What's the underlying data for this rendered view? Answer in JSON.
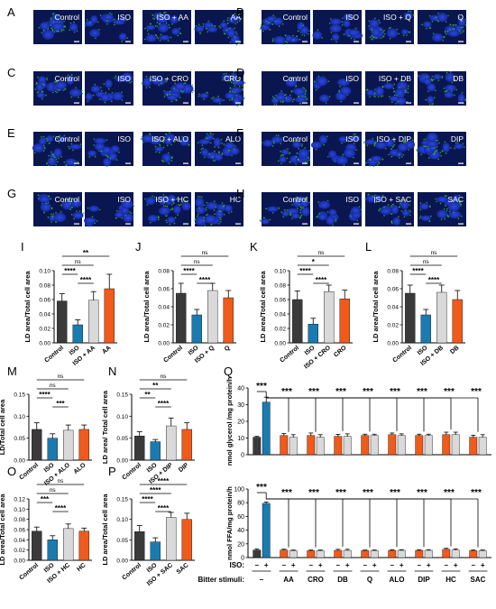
{
  "panel_letters": [
    "A",
    "B",
    "C",
    "D",
    "E",
    "F",
    "G",
    "H",
    "I",
    "J",
    "K",
    "L",
    "M",
    "N",
    "O",
    "P",
    "Q"
  ],
  "micro_labels": [
    [
      "Control",
      "ISO",
      "ISO + AA",
      "AA"
    ],
    [
      "Control",
      "ISO",
      "ISO + Q",
      "Q"
    ],
    [
      "Control",
      "ISO",
      "ISO + CRO",
      "CRO"
    ],
    [
      "Control",
      "ISO",
      "ISO + DB",
      "DB"
    ],
    [
      "Control",
      "ISO",
      "ISO + ALO",
      "ALO"
    ],
    [
      "Control",
      "ISO",
      "ISO + DIP",
      "DIP"
    ],
    [
      "Control",
      "ISO",
      "ISO + HC",
      "HC"
    ],
    [
      "Control",
      "ISO",
      "ISO + SAC",
      "SAC"
    ]
  ],
  "colors": {
    "control": "#3a3a3a",
    "iso": "#1a7bb0",
    "combo": "#d9d9d9",
    "bitter": "#f05a1a",
    "micro_bg": "#0a1650",
    "nucleus": "#1e3ad0",
    "lipid": "#2fb52a"
  },
  "chart_data": [
    {
      "panel": "I",
      "type": "bar",
      "categories": [
        "Control",
        "ISO",
        "ISO + AA",
        "AA"
      ],
      "values": [
        0.058,
        0.025,
        0.059,
        0.075
      ],
      "errors": [
        0.01,
        0.007,
        0.012,
        0.02
      ],
      "ylabel": "LD area/Total cell area",
      "yticks": [
        "0.00",
        "0.02",
        "0.04",
        "0.06",
        "0.08",
        "0.10"
      ],
      "ylim": [
        0,
        0.1
      ],
      "sig": [
        {
          "a": 0,
          "b": 1,
          "text": "****"
        },
        {
          "a": 1,
          "b": 2,
          "text": "****"
        },
        {
          "a": 0,
          "b": 2,
          "text": "ns"
        },
        {
          "a": 0,
          "b": 3,
          "text": "**"
        }
      ]
    },
    {
      "panel": "J",
      "type": "bar",
      "categories": [
        "Control",
        "ISO",
        "ISO + Q",
        "Q"
      ],
      "values": [
        0.055,
        0.031,
        0.058,
        0.05
      ],
      "errors": [
        0.011,
        0.006,
        0.008,
        0.008
      ],
      "ylabel": "LD area/Total cell area",
      "yticks": [
        "0.00",
        "0.02",
        "0.04",
        "0.06",
        "0.08"
      ],
      "ylim": [
        0,
        0.08
      ],
      "sig": [
        {
          "a": 0,
          "b": 1,
          "text": "****"
        },
        {
          "a": 1,
          "b": 2,
          "text": "****"
        },
        {
          "a": 0,
          "b": 2,
          "text": "ns"
        },
        {
          "a": 0,
          "b": 3,
          "text": "ns"
        }
      ]
    },
    {
      "panel": "K",
      "type": "bar",
      "categories": [
        "Control",
        "ISO",
        "ISO + CRO",
        "CRO"
      ],
      "values": [
        0.06,
        0.026,
        0.071,
        0.061
      ],
      "errors": [
        0.012,
        0.008,
        0.009,
        0.012
      ],
      "ylabel": "LD area/Total cell area",
      "yticks": [
        "0.00",
        "0.02",
        "0.04",
        "0.06",
        "0.08",
        "0.10"
      ],
      "ylim": [
        0,
        0.1
      ],
      "sig": [
        {
          "a": 0,
          "b": 1,
          "text": "****"
        },
        {
          "a": 1,
          "b": 2,
          "text": "****"
        },
        {
          "a": 0,
          "b": 2,
          "text": "*"
        },
        {
          "a": 0,
          "b": 3,
          "text": "ns"
        }
      ]
    },
    {
      "panel": "L",
      "type": "bar",
      "categories": [
        "Control",
        "ISO",
        "ISO + DB",
        "DB"
      ],
      "values": [
        0.055,
        0.031,
        0.056,
        0.048
      ],
      "errors": [
        0.009,
        0.006,
        0.008,
        0.01
      ],
      "ylabel": "LD area/Total cell area",
      "yticks": [
        "0.00",
        "0.02",
        "0.04",
        "0.06",
        "0.08"
      ],
      "ylim": [
        0,
        0.08
      ],
      "sig": [
        {
          "a": 0,
          "b": 1,
          "text": "****"
        },
        {
          "a": 1,
          "b": 2,
          "text": "****"
        },
        {
          "a": 0,
          "b": 2,
          "text": "ns"
        },
        {
          "a": 0,
          "b": 3,
          "text": "ns"
        }
      ]
    },
    {
      "panel": "M",
      "type": "bar",
      "categories": [
        "Control",
        "ISO",
        "ISO + ALO",
        "ALO"
      ],
      "values": [
        0.07,
        0.05,
        0.068,
        0.07
      ],
      "errors": [
        0.015,
        0.01,
        0.012,
        0.01
      ],
      "ylabel": "LD/Total cell area",
      "yticks": [
        "0.00",
        "0.05",
        "0.10",
        "0.15"
      ],
      "ylim": [
        0,
        0.15
      ],
      "sig": [
        {
          "a": 0,
          "b": 1,
          "text": "****"
        },
        {
          "a": 1,
          "b": 2,
          "text": "***"
        },
        {
          "a": 0,
          "b": 2,
          "text": "ns"
        },
        {
          "a": 0,
          "b": 3,
          "text": "ns"
        }
      ]
    },
    {
      "panel": "N",
      "type": "bar",
      "categories": [
        "Control",
        "ISO",
        "ISO + DIP",
        "DIP"
      ],
      "values": [
        0.055,
        0.042,
        0.078,
        0.07
      ],
      "errors": [
        0.01,
        0.005,
        0.018,
        0.015
      ],
      "ylabel": "LD area/ Total cell area",
      "yticks": [
        "0.00",
        "0.05",
        "0.10",
        "0.15"
      ],
      "ylim": [
        0,
        0.15
      ],
      "sig": [
        {
          "a": 0,
          "b": 1,
          "text": "**"
        },
        {
          "a": 1,
          "b": 2,
          "text": "****"
        },
        {
          "a": 0,
          "b": 2,
          "text": "**"
        },
        {
          "a": 0,
          "b": 3,
          "text": "ns"
        }
      ]
    },
    {
      "panel": "O",
      "type": "bar",
      "categories": [
        "Control",
        "ISO",
        "ISO + HC",
        "HC"
      ],
      "values": [
        0.057,
        0.04,
        0.062,
        0.057
      ],
      "errors": [
        0.008,
        0.008,
        0.009,
        0.006
      ],
      "ylabel": "LD area/Total cell area",
      "yticks": [
        "0.00",
        "0.02",
        "0.04",
        "0.06",
        "0.08",
        "0.10",
        "0.12"
      ],
      "ylim": [
        0,
        0.12
      ],
      "sig": [
        {
          "a": 0,
          "b": 1,
          "text": "***"
        },
        {
          "a": 1,
          "b": 2,
          "text": "****"
        },
        {
          "a": 0,
          "b": 2,
          "text": "ns"
        },
        {
          "a": 0,
          "b": 3,
          "text": "ns"
        }
      ]
    },
    {
      "panel": "P",
      "type": "bar",
      "categories": [
        "Control",
        "ISO",
        "ISO + SAC",
        "SAC"
      ],
      "values": [
        0.07,
        0.045,
        0.105,
        0.1
      ],
      "errors": [
        0.015,
        0.01,
        0.012,
        0.015
      ],
      "ylabel": "LD area/Total cell area",
      "yticks": [
        "0.00",
        "0.05",
        "0.10",
        "0.15"
      ],
      "ylim": [
        0,
        0.15
      ],
      "sig": [
        {
          "a": 0,
          "b": 1,
          "text": "****"
        },
        {
          "a": 1,
          "b": 2,
          "text": "****"
        },
        {
          "a": 0,
          "b": 2,
          "text": "****"
        },
        {
          "a": 0,
          "b": 3,
          "text": "****"
        }
      ]
    },
    {
      "panel": "Q-top",
      "type": "bar",
      "ylabel": "nmol glycerol /mg protein/h",
      "yticks": [
        "0",
        "10",
        "20",
        "30",
        "40"
      ],
      "ylim": [
        0,
        40
      ],
      "groups": [
        "–",
        "AA",
        "CRO",
        "DB",
        "Q",
        "ALO",
        "DIP",
        "HC",
        "SAC"
      ],
      "series": [
        {
          "name": "–",
          "values": [
            10.5,
            11.5,
            11.5,
            11,
            11.5,
            12,
            11.5,
            12,
            10.5
          ],
          "errors": [
            0.5,
            1.2,
            1.5,
            1.2,
            0.8,
            1,
            0.8,
            1.5,
            1.2
          ]
        },
        {
          "name": "+",
          "values": [
            31.5,
            10.5,
            10.5,
            11,
            11.5,
            11.5,
            11.5,
            12,
            10.5
          ],
          "errors": [
            3,
            1.5,
            1.5,
            1.5,
            0.8,
            1,
            0.8,
            1.5,
            1.5
          ]
        }
      ],
      "sig_label": "***"
    },
    {
      "panel": "Q-bottom",
      "type": "bar",
      "ylabel": "nmol FFA/mg protein/h",
      "yticks": [
        "0",
        "20",
        "40",
        "60",
        "80",
        "100"
      ],
      "ylim": [
        0,
        100
      ],
      "groups": [
        "–",
        "AA",
        "CRO",
        "DB",
        "Q",
        "ALO",
        "DIP",
        "HC",
        "SAC"
      ],
      "series": [
        {
          "name": "–",
          "values": [
            11,
            11,
            10,
            10.5,
            10,
            10.5,
            10.5,
            12,
            10
          ],
          "errors": [
            1.5,
            1.2,
            1,
            1.5,
            1,
            1,
            1,
            1.5,
            1
          ]
        },
        {
          "name": "+",
          "values": [
            79,
            10,
            10,
            10.5,
            10,
            10.5,
            10.5,
            11,
            10
          ],
          "errors": [
            2,
            1,
            1,
            1.5,
            1,
            1,
            1,
            1.5,
            1
          ]
        }
      ],
      "sig_label": "***",
      "iso_row_label": "ISO:",
      "iso_signs": [
        "–",
        "+"
      ],
      "bitter_label": "Bitter stimuli:"
    }
  ]
}
